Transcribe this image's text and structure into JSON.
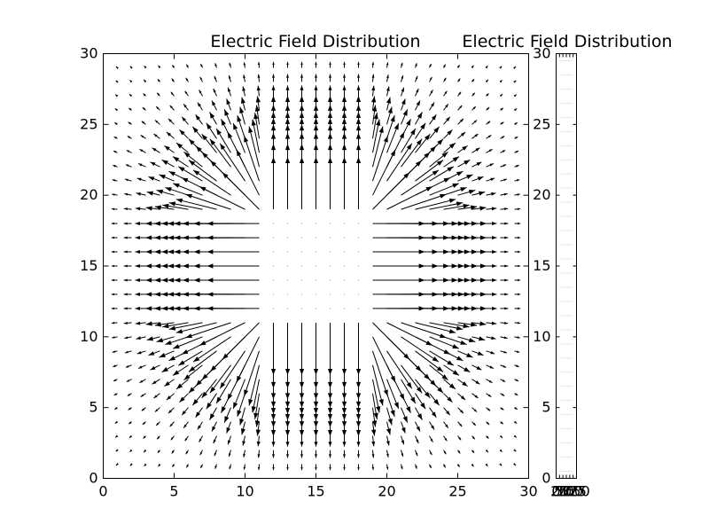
{
  "chart_data": [
    {
      "type": "quiver",
      "title": "Electric Field Distribution",
      "xlabel": "",
      "ylabel": "",
      "xlim": [
        0,
        30
      ],
      "ylim": [
        0,
        30
      ],
      "xticks": [
        0,
        5,
        10,
        15,
        20,
        25,
        30
      ],
      "yticks": [
        0,
        5,
        10,
        15,
        20,
        25,
        30
      ],
      "xtick_labels": [
        "0",
        "5",
        "10",
        "15",
        "20",
        "25",
        "30"
      ],
      "ytick_labels": [
        "0",
        "5",
        "10",
        "15",
        "20",
        "25",
        "30"
      ],
      "grid": false,
      "grid_points": {
        "x_start": 1,
        "x_end": 29,
        "y_start": 1,
        "y_end": 29,
        "step": 1
      },
      "charge_region": {
        "x": [
          12,
          18
        ],
        "y": [
          12,
          18
        ]
      },
      "field_model": "uniform flux away from square charged region, strength decaying with distance",
      "arrow_color": "#000000"
    },
    {
      "type": "colorbar",
      "title": "Electric Field Distribution",
      "ylim": [
        0,
        30
      ],
      "yticks": [
        0,
        5,
        10,
        15,
        20,
        25,
        30
      ],
      "ytick_labels": [
        "0",
        "5",
        "10",
        "15",
        "20",
        "25",
        "30"
      ],
      "xtick_labels": [
        "0",
        "25",
        "50",
        "75",
        "100",
        "125",
        "150"
      ],
      "stripe_color": "#e8e8e8"
    }
  ]
}
